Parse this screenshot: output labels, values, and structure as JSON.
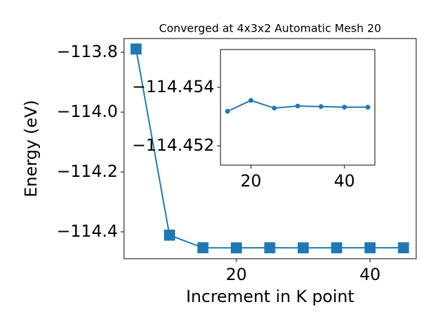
{
  "chart_data": [
    {
      "type": "line",
      "title": "Converged at 4x3x2 Automatic Mesh 20",
      "x_label": "Increment in K point",
      "y_label": "Energy (eV)",
      "x": [
        5,
        10,
        15,
        20,
        25,
        30,
        35,
        40,
        45
      ],
      "series": [
        {
          "color": "#1f77b4",
          "marker": "square",
          "values": [
            -113.789,
            -114.411,
            -114.4532,
            -114.4535,
            -114.4533,
            -114.4534,
            -114.4533,
            -114.4533,
            -114.4533
          ]
        }
      ],
      "xlim": [
        3.2,
        46.9
      ],
      "ylim": [
        -114.4897,
        -113.754
      ],
      "xticks": [
        20,
        40
      ],
      "yticks": [
        {
          "value": -113.8,
          "label": "−113.8"
        },
        {
          "value": -114.0,
          "label": "−114.0"
        },
        {
          "value": -114.2,
          "label": "−114.2"
        },
        {
          "value": -114.4,
          "label": "−114.4"
        }
      ]
    },
    {
      "type": "line",
      "x": [
        15,
        20,
        25,
        30,
        35,
        40,
        45
      ],
      "series": [
        {
          "color": "#1f77b4",
          "marker": "circle",
          "values": [
            -114.45318,
            -114.45355,
            -114.45329,
            -114.45336,
            -114.45334,
            -114.45332,
            -114.45332
          ]
        }
      ],
      "xlim": [
        13.5,
        46.5
      ],
      "ylim": [
        -114.45134,
        -114.45529
      ],
      "xticks": [
        20,
        40
      ],
      "yticks": [
        {
          "value": -114.454,
          "label": "−114.454"
        },
        {
          "value": -114.452,
          "label": "−114.452"
        }
      ]
    }
  ]
}
